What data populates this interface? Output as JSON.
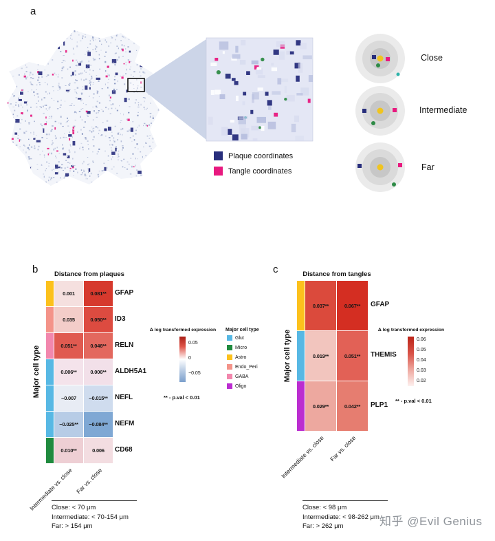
{
  "panel_a": {
    "label": "a",
    "coordinate_legend": [
      {
        "label": "Plaque coordinates",
        "color": "#282e7c"
      },
      {
        "label": "Tangle coordinates",
        "color": "#e8197f"
      }
    ],
    "distance_rings": [
      {
        "label": "Close"
      },
      {
        "label": "Intermediate"
      },
      {
        "label": "Far"
      }
    ]
  },
  "panel_b": {
    "label": "b"
  },
  "panel_c": {
    "label": "c"
  },
  "watermark": "知乎 @Evil Genius",
  "chart_data": [
    {
      "type": "heatmap",
      "title": "Distance from plaques",
      "ylabel": "Major cell type",
      "columns": [
        "Intermediate vs. close",
        "Far vs. close"
      ],
      "rows": [
        {
          "gene": "GFAP",
          "cell_type": "Astro",
          "type_color": "#fcc11c",
          "values": [
            "0.001",
            "0.081**"
          ],
          "numeric": [
            0.001,
            0.081
          ],
          "colors": [
            "#f5e0df",
            "#d6392d"
          ]
        },
        {
          "gene": "ID3",
          "cell_type": "Endo_Peri",
          "type_color": "#f49389",
          "values": [
            "0.035",
            "0.050**"
          ],
          "numeric": [
            0.035,
            0.05
          ],
          "colors": [
            "#f3cdc9",
            "#dd4b40"
          ]
        },
        {
          "gene": "RELN",
          "cell_type": "GABA",
          "type_color": "#f287ad",
          "values": [
            "0.051**",
            "0.046**"
          ],
          "numeric": [
            0.051,
            0.046
          ],
          "colors": [
            "#e05a50",
            "#e3685e"
          ]
        },
        {
          "gene": "ALDH5A1",
          "cell_type": "Glut",
          "type_color": "#57b8e4",
          "values": [
            "0.006**",
            "0.006**"
          ],
          "numeric": [
            0.006,
            0.006
          ],
          "colors": [
            "#f4e3eb",
            "#f2e0e9"
          ]
        },
        {
          "gene": "NEFL",
          "cell_type": "Glut",
          "type_color": "#57b8e4",
          "values": [
            "−0.007",
            "−0.015**"
          ],
          "numeric": [
            -0.007,
            -0.015
          ],
          "colors": [
            "#e8ecf4",
            "#cfdcee"
          ]
        },
        {
          "gene": "NEFM",
          "cell_type": "Glut",
          "type_color": "#57b8e4",
          "values": [
            "−0.025**",
            "−0.084**"
          ],
          "numeric": [
            -0.025,
            -0.084
          ],
          "colors": [
            "#b7cce6",
            "#7fa8d4"
          ]
        },
        {
          "gene": "CD68",
          "cell_type": "Micro",
          "type_color": "#1f8a3e",
          "values": [
            "0.010**",
            "0.006"
          ],
          "numeric": [
            0.01,
            0.006
          ],
          "colors": [
            "#eecfd4",
            "#f3dde1"
          ]
        }
      ],
      "colorbar": {
        "label": "Δ log transformed expression",
        "ticks": [
          "0.05",
          "0",
          "−0.05"
        ]
      },
      "significance_note": "** - p.val < 0.01",
      "cell_type_legend": {
        "title": "Major cell type",
        "items": [
          {
            "label": "Glut",
            "color": "#57b8e4"
          },
          {
            "label": "Micro",
            "color": "#1f8a3e"
          },
          {
            "label": "Astro",
            "color": "#fcc11c"
          },
          {
            "label": "Endo_Peri",
            "color": "#f49389"
          },
          {
            "label": "GABA",
            "color": "#f287ad"
          },
          {
            "label": "Oligo",
            "color": "#bb2dd0"
          }
        ]
      },
      "distance_definitions": [
        "Close: < 70 μm",
        "Intermediate: < 70-154 μm",
        "Far: > 154 μm"
      ]
    },
    {
      "type": "heatmap",
      "title": "Distance from tangles",
      "ylabel": "Major cell type",
      "columns": [
        "Intermediate vs. close",
        "Far vs. close"
      ],
      "rows": [
        {
          "gene": "GFAP",
          "cell_type": "Astro",
          "type_color": "#fcc11c",
          "values": [
            "0.037**",
            "0.067**"
          ],
          "numeric": [
            0.037,
            0.067
          ],
          "colors": [
            "#db4a3c",
            "#d42e22"
          ]
        },
        {
          "gene": "THEMIS",
          "cell_type": "Glut",
          "type_color": "#57b8e4",
          "values": [
            "0.019**",
            "0.051**"
          ],
          "numeric": [
            0.019,
            0.051
          ],
          "colors": [
            "#f2c5be",
            "#e26156"
          ]
        },
        {
          "gene": "PLP1",
          "cell_type": "Oligo",
          "type_color": "#bb2dd0",
          "values": [
            "0.029**",
            "0.042**"
          ],
          "numeric": [
            0.029,
            0.042
          ],
          "colors": [
            "#eda89f",
            "#e67d70"
          ]
        }
      ],
      "colorbar": {
        "label": "Δ log transformed expression",
        "ticks": [
          "0.06",
          "0.05",
          "0.04",
          "0.03",
          "0.02"
        ]
      },
      "significance_note": "** - p.val < 0.01",
      "distance_definitions": [
        "Close: < 98 μm",
        "Intermediate: < 98-262 μm",
        "Far: > 262 μm"
      ]
    }
  ]
}
